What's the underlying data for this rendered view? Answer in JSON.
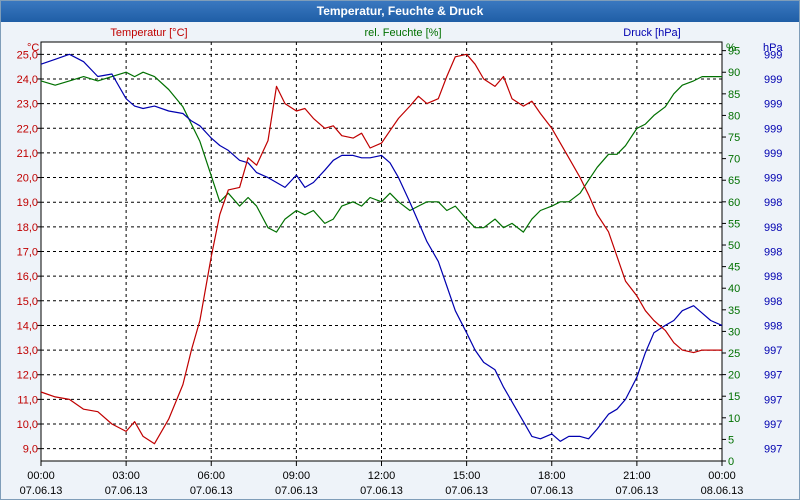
{
  "window": {
    "title": "Temperatur, Feuchte & Druck"
  },
  "colors": {
    "temperature": "#c00000",
    "humidity": "#007000",
    "pressure": "#0000b0",
    "axis_text": "#000000",
    "grid": "#000000"
  },
  "chart_data": {
    "type": "line",
    "title": "Temperatur, Feuchte & Druck",
    "grid": true,
    "x": {
      "range": [
        "07.06.13 00:00",
        "08.06.13 00:00"
      ],
      "ticks": [
        {
          "time": "00:00",
          "date": "07.06.13"
        },
        {
          "time": "03:00",
          "date": "07.06.13"
        },
        {
          "time": "06:00",
          "date": "07.06.13"
        },
        {
          "time": "09:00",
          "date": "07.06.13"
        },
        {
          "time": "12:00",
          "date": "07.06.13"
        },
        {
          "time": "15:00",
          "date": "07.06.13"
        },
        {
          "time": "18:00",
          "date": "07.06.13"
        },
        {
          "time": "21:00",
          "date": "07.06.13"
        },
        {
          "time": "00:00",
          "date": "08.06.13"
        }
      ]
    },
    "axes": {
      "temperature": {
        "unit": "°C",
        "label": "Temperatur [°C]",
        "ylim": [
          8.5,
          25.5
        ],
        "ticks": [
          "25,0",
          "24,0",
          "23,0",
          "22,0",
          "21,0",
          "20,0",
          "19,0",
          "18,0",
          "17,0",
          "16,0",
          "15,0",
          "14,0",
          "13,0",
          "12,0",
          "11,0",
          "10,0",
          "9,0"
        ]
      },
      "humidity": {
        "unit": "%",
        "label": "rel. Feuchte [%]",
        "ylim": [
          0,
          97
        ],
        "ticks": [
          "95",
          "90",
          "85",
          "80",
          "75",
          "70",
          "65",
          "60",
          "55",
          "50",
          "45",
          "40",
          "35",
          "30",
          "25",
          "20",
          "15",
          "10",
          "5",
          "0"
        ]
      },
      "pressure": {
        "unit": "hPa",
        "label": "Druck [hPa]",
        "ticks": [
          "999",
          "999",
          "999",
          "999",
          "999",
          "999",
          "998",
          "998",
          "998",
          "998",
          "998",
          "998",
          "997",
          "997",
          "997",
          "997",
          "997"
        ]
      }
    },
    "series": [
      {
        "name": "Temperatur [°C]",
        "axis": "temperature",
        "x": [
          0,
          0.5,
          1,
          1.5,
          2,
          2.5,
          3,
          3.3,
          3.6,
          4,
          4.5,
          5,
          5.3,
          5.6,
          6,
          6.3,
          6.6,
          7,
          7.3,
          7.6,
          8,
          8.3,
          8.6,
          9,
          9.3,
          9.6,
          10,
          10.3,
          10.6,
          11,
          11.3,
          11.6,
          12,
          12.3,
          12.6,
          13,
          13.3,
          13.6,
          14,
          14.3,
          14.6,
          15,
          15.3,
          15.6,
          16,
          16.3,
          16.6,
          17,
          17.3,
          17.6,
          18,
          18.3,
          18.6,
          19,
          19.3,
          19.6,
          20,
          20.3,
          20.6,
          21,
          21.3,
          21.6,
          22,
          22.3,
          22.6,
          23,
          23.3,
          23.6,
          24
        ],
        "y": [
          11.3,
          11.1,
          11.0,
          10.6,
          10.5,
          10.0,
          9.7,
          10.1,
          9.5,
          9.2,
          10.2,
          11.6,
          13.0,
          14.2,
          16.8,
          18.5,
          19.5,
          19.6,
          20.8,
          20.5,
          21.5,
          23.7,
          23.0,
          22.7,
          22.8,
          22.4,
          22.0,
          22.1,
          21.7,
          21.6,
          21.8,
          21.2,
          21.4,
          21.9,
          22.4,
          22.9,
          23.3,
          23.0,
          23.2,
          24.1,
          24.9,
          25.0,
          24.6,
          24.0,
          23.7,
          24.1,
          23.2,
          22.9,
          23.1,
          22.6,
          22.0,
          21.4,
          20.8,
          20.0,
          19.3,
          18.5,
          17.8,
          16.8,
          15.8,
          15.2,
          14.6,
          14.2,
          13.8,
          13.3,
          13.0,
          12.9,
          13.0,
          13.0,
          13.0
        ]
      },
      {
        "name": "rel. Feuchte [%]",
        "axis": "humidity",
        "x": [
          0,
          0.5,
          1,
          1.5,
          2,
          2.5,
          3,
          3.3,
          3.6,
          4,
          4.5,
          5,
          5.3,
          5.6,
          6,
          6.3,
          6.6,
          7,
          7.3,
          7.6,
          8,
          8.3,
          8.6,
          9,
          9.3,
          9.6,
          10,
          10.3,
          10.6,
          11,
          11.3,
          11.6,
          12,
          12.3,
          12.6,
          13,
          13.3,
          13.6,
          14,
          14.3,
          14.6,
          15,
          15.3,
          15.6,
          16,
          16.3,
          16.6,
          17,
          17.3,
          17.6,
          18,
          18.3,
          18.6,
          19,
          19.3,
          19.6,
          20,
          20.3,
          20.6,
          21,
          21.3,
          21.6,
          22,
          22.3,
          22.6,
          23,
          23.3,
          23.6,
          24
        ],
        "y": [
          88,
          87,
          88,
          89,
          88,
          89,
          90,
          89,
          90,
          89,
          86,
          82,
          78,
          74,
          66,
          60,
          62,
          59,
          61,
          59,
          54,
          53,
          56,
          58,
          57,
          58,
          55,
          56,
          59,
          60,
          59,
          61,
          60,
          62,
          60,
          58,
          59,
          60,
          60,
          58,
          59,
          56,
          54,
          54,
          56,
          54,
          55,
          53,
          56,
          58,
          59,
          60,
          60,
          62,
          65,
          68,
          71,
          71,
          73,
          77,
          78,
          80,
          82,
          85,
          87,
          88,
          89,
          89,
          89
        ]
      },
      {
        "name": "Druck [hPa]",
        "axis": "pressure",
        "x": [
          0,
          0.5,
          1,
          1.5,
          2,
          2.5,
          3,
          3.3,
          3.6,
          4,
          4.5,
          5,
          5.3,
          5.6,
          6,
          6.3,
          6.6,
          7,
          7.3,
          7.6,
          8,
          8.3,
          8.6,
          9,
          9.3,
          9.6,
          10,
          10.3,
          10.6,
          11,
          11.3,
          11.6,
          12,
          12.3,
          12.6,
          13,
          13.3,
          13.6,
          14,
          14.3,
          14.6,
          15,
          15.3,
          15.6,
          16,
          16.3,
          16.6,
          17,
          17.3,
          17.6,
          18,
          18.3,
          18.6,
          19,
          19.3,
          19.6,
          20,
          20.3,
          20.6,
          21,
          21.3,
          21.6,
          22,
          22.3,
          22.6,
          23,
          23.3,
          23.6,
          24
        ],
        "y": [
          24.6,
          24.8,
          25.0,
          24.7,
          24.1,
          24.2,
          23.2,
          22.9,
          22.8,
          22.9,
          22.7,
          22.6,
          22.3,
          22.1,
          21.6,
          21.3,
          21.1,
          20.7,
          20.6,
          20.2,
          20.0,
          19.8,
          19.6,
          20.1,
          19.6,
          19.8,
          20.3,
          20.7,
          20.9,
          20.9,
          20.8,
          20.8,
          20.9,
          20.6,
          20.0,
          19.0,
          18.2,
          17.4,
          16.6,
          15.6,
          14.6,
          13.7,
          13.0,
          12.5,
          12.2,
          11.5,
          10.9,
          10.1,
          9.5,
          9.4,
          9.6,
          9.3,
          9.5,
          9.5,
          9.4,
          9.8,
          10.4,
          10.6,
          11.0,
          11.9,
          12.9,
          13.7,
          14.0,
          14.2,
          14.6,
          14.8,
          14.5,
          14.2,
          14.0
        ]
      }
    ]
  }
}
